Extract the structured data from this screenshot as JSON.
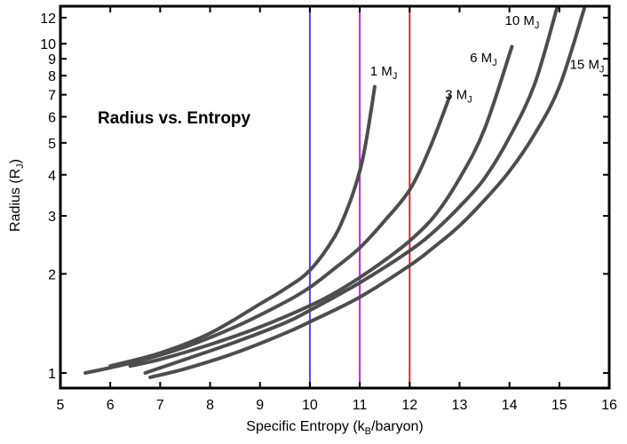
{
  "chart_data": {
    "type": "line",
    "title": "Radius vs. Entropy",
    "xlabel_main": "Specific Entropy (k",
    "xlabel_sub": "B",
    "xlabel_tail": "/baryon)",
    "ylabel_main": "Radius (R",
    "ylabel_sub": "J",
    "ylabel_tail": ")",
    "x_scale": "linear",
    "y_scale": "log",
    "xlim": [
      5,
      16
    ],
    "ylim": [
      0.9,
      13
    ],
    "x_ticks": [
      5,
      6,
      7,
      8,
      9,
      10,
      11,
      12,
      13,
      14,
      15,
      16
    ],
    "y_ticks": [
      1,
      2,
      3,
      4,
      5,
      6,
      7,
      8,
      9,
      10,
      12
    ],
    "grid": false,
    "curve_color": "#4d4d4d",
    "series": [
      {
        "name": "1 M",
        "sub": "J",
        "x": [
          6.0,
          7.0,
          8.0,
          9.0,
          9.5,
          10.0,
          10.5,
          10.8,
          11.0,
          11.1,
          11.2,
          11.3
        ],
        "y": [
          1.05,
          1.15,
          1.32,
          1.62,
          1.8,
          2.05,
          2.6,
          3.3,
          4.1,
          4.8,
          5.9,
          7.4
        ]
      },
      {
        "name": "3 M",
        "sub": "J",
        "x": [
          5.5,
          6.5,
          7.5,
          8.5,
          9.5,
          10.0,
          10.5,
          11.0,
          11.5,
          12.0,
          12.4,
          12.8
        ],
        "y": [
          1.0,
          1.08,
          1.2,
          1.38,
          1.64,
          1.82,
          2.08,
          2.4,
          2.9,
          3.6,
          4.8,
          6.9
        ]
      },
      {
        "name": "6 M",
        "sub": "J",
        "x": [
          6.4,
          7.0,
          8.0,
          9.0,
          10.0,
          10.5,
          11.0,
          11.5,
          12.0,
          12.5,
          13.0,
          13.5,
          14.05
        ],
        "y": [
          1.05,
          1.1,
          1.22,
          1.38,
          1.6,
          1.75,
          1.95,
          2.2,
          2.52,
          3.0,
          3.9,
          5.5,
          9.8
        ]
      },
      {
        "name": "10 M",
        "sub": "J",
        "x": [
          6.7,
          7.5,
          8.5,
          9.5,
          10.0,
          11.0,
          12.0,
          12.5,
          13.0,
          13.5,
          14.0,
          14.5,
          14.95
        ],
        "y": [
          1.0,
          1.1,
          1.24,
          1.42,
          1.55,
          1.88,
          2.35,
          2.7,
          3.2,
          3.9,
          5.2,
          7.5,
          12.8
        ]
      },
      {
        "name": "15 M",
        "sub": "J",
        "x": [
          6.8,
          7.5,
          8.5,
          9.5,
          10.0,
          11.0,
          12.0,
          12.5,
          13.0,
          13.5,
          14.0,
          14.5,
          15.0,
          15.5
        ],
        "y": [
          0.97,
          1.03,
          1.15,
          1.32,
          1.43,
          1.7,
          2.12,
          2.42,
          2.8,
          3.35,
          4.1,
          5.3,
          7.4,
          12.8
        ]
      }
    ],
    "vertical_lines": [
      {
        "x": 10,
        "color": "#5a3cff"
      },
      {
        "x": 11,
        "color": "#c227e8"
      },
      {
        "x": 12,
        "color": "#e8262a"
      }
    ]
  }
}
